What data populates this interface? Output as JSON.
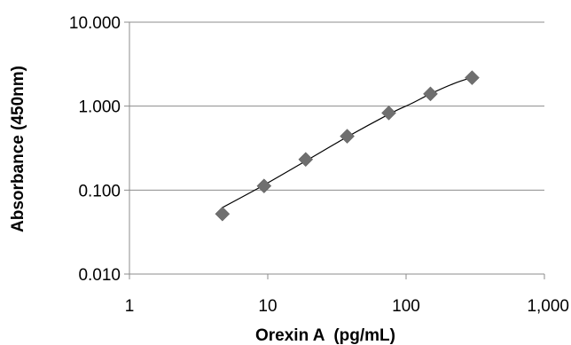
{
  "chart_data": {
    "type": "scatter",
    "title": "",
    "xlabel": "Orexin A  (pg/mL)",
    "ylabel": "Absorbance (450nm)",
    "x_scale": "log",
    "y_scale": "log",
    "xlim": [
      1,
      1000
    ],
    "ylim": [
      0.01,
      10
    ],
    "x_ticks": [
      1,
      10,
      100,
      1000
    ],
    "x_tick_labels": [
      "1",
      "10",
      "100",
      "1,000"
    ],
    "y_ticks": [
      0.01,
      0.1,
      1,
      10
    ],
    "y_tick_labels": [
      "0.010",
      "0.100",
      "1.000",
      "10.000"
    ],
    "grid": "horizontal",
    "legend": "none",
    "series": [
      {
        "marker": "diamond",
        "color": "#6f6f6f",
        "x": [
          4.7,
          9.4,
          18.8,
          37.5,
          75,
          150,
          300
        ],
        "y": [
          0.052,
          0.112,
          0.232,
          0.438,
          0.83,
          1.4,
          2.18
        ]
      }
    ],
    "trendline": {
      "color": "#000000",
      "x": [
        4.7,
        9.4,
        18.8,
        37.5,
        75,
        110,
        150,
        220,
        300
      ],
      "y": [
        0.062,
        0.115,
        0.222,
        0.43,
        0.8,
        1.08,
        1.4,
        1.85,
        2.2
      ]
    }
  }
}
